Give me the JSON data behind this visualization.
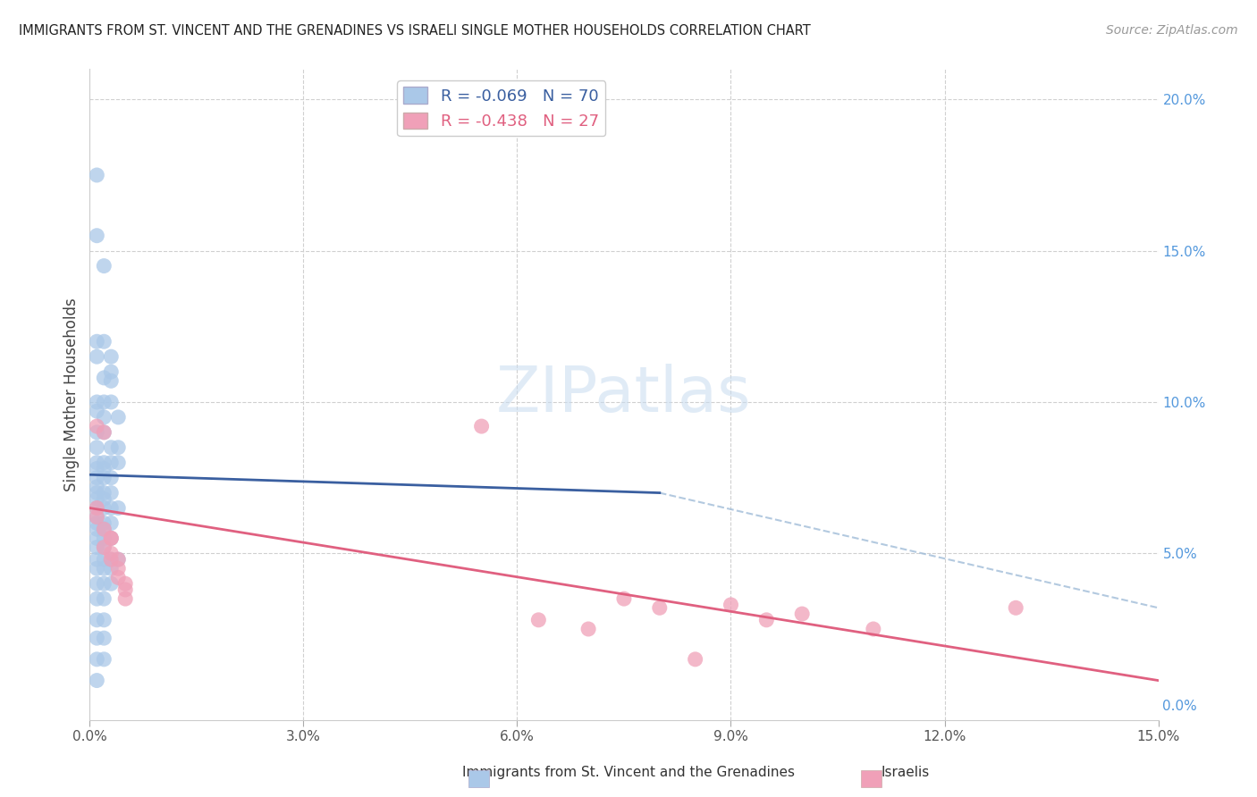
{
  "title": "IMMIGRANTS FROM ST. VINCENT AND THE GRENADINES VS ISRAELI SINGLE MOTHER HOUSEHOLDS CORRELATION CHART",
  "source": "Source: ZipAtlas.com",
  "ylabel": "Single Mother Households",
  "legend_label1": "Immigrants from St. Vincent and the Grenadines",
  "legend_label2": "Israelis",
  "xlim": [
    0.0,
    0.15
  ],
  "ylim": [
    -0.005,
    0.21
  ],
  "xticks": [
    0.0,
    0.03,
    0.06,
    0.09,
    0.12,
    0.15
  ],
  "yticks_right": [
    0.0,
    0.05,
    0.1,
    0.15,
    0.2
  ],
  "blue_color": "#aac8e8",
  "pink_color": "#f0a0b8",
  "blue_line_color": "#3a5fa0",
  "pink_line_color": "#e06080",
  "dashed_line_color": "#a0bcd8",
  "blue_R": -0.069,
  "blue_N": 70,
  "pink_R": -0.438,
  "pink_N": 27,
  "blue_line": [
    0.0,
    0.076,
    0.08,
    0.07
  ],
  "pink_line": [
    0.0,
    0.065,
    0.15,
    0.008
  ],
  "dashed_line": [
    0.08,
    0.07,
    0.15,
    0.032
  ],
  "blue_points": [
    [
      0.001,
      0.175
    ],
    [
      0.001,
      0.155
    ],
    [
      0.002,
      0.145
    ],
    [
      0.001,
      0.12
    ],
    [
      0.002,
      0.12
    ],
    [
      0.001,
      0.115
    ],
    [
      0.003,
      0.115
    ],
    [
      0.003,
      0.11
    ],
    [
      0.002,
      0.108
    ],
    [
      0.003,
      0.107
    ],
    [
      0.001,
      0.1
    ],
    [
      0.002,
      0.1
    ],
    [
      0.003,
      0.1
    ],
    [
      0.001,
      0.097
    ],
    [
      0.002,
      0.095
    ],
    [
      0.004,
      0.095
    ],
    [
      0.001,
      0.09
    ],
    [
      0.002,
      0.09
    ],
    [
      0.001,
      0.085
    ],
    [
      0.003,
      0.085
    ],
    [
      0.004,
      0.085
    ],
    [
      0.001,
      0.08
    ],
    [
      0.002,
      0.08
    ],
    [
      0.003,
      0.08
    ],
    [
      0.004,
      0.08
    ],
    [
      0.001,
      0.078
    ],
    [
      0.002,
      0.078
    ],
    [
      0.001,
      0.075
    ],
    [
      0.002,
      0.075
    ],
    [
      0.003,
      0.075
    ],
    [
      0.001,
      0.072
    ],
    [
      0.001,
      0.07
    ],
    [
      0.002,
      0.07
    ],
    [
      0.003,
      0.07
    ],
    [
      0.001,
      0.068
    ],
    [
      0.002,
      0.068
    ],
    [
      0.001,
      0.065
    ],
    [
      0.002,
      0.065
    ],
    [
      0.003,
      0.065
    ],
    [
      0.004,
      0.065
    ],
    [
      0.001,
      0.062
    ],
    [
      0.001,
      0.06
    ],
    [
      0.002,
      0.06
    ],
    [
      0.003,
      0.06
    ],
    [
      0.001,
      0.058
    ],
    [
      0.002,
      0.058
    ],
    [
      0.001,
      0.055
    ],
    [
      0.002,
      0.055
    ],
    [
      0.003,
      0.055
    ],
    [
      0.001,
      0.052
    ],
    [
      0.002,
      0.052
    ],
    [
      0.001,
      0.048
    ],
    [
      0.002,
      0.048
    ],
    [
      0.003,
      0.048
    ],
    [
      0.004,
      0.048
    ],
    [
      0.001,
      0.045
    ],
    [
      0.002,
      0.045
    ],
    [
      0.003,
      0.045
    ],
    [
      0.001,
      0.04
    ],
    [
      0.002,
      0.04
    ],
    [
      0.003,
      0.04
    ],
    [
      0.001,
      0.035
    ],
    [
      0.002,
      0.035
    ],
    [
      0.001,
      0.028
    ],
    [
      0.002,
      0.028
    ],
    [
      0.001,
      0.022
    ],
    [
      0.002,
      0.022
    ],
    [
      0.001,
      0.015
    ],
    [
      0.002,
      0.015
    ],
    [
      0.001,
      0.008
    ]
  ],
  "pink_points": [
    [
      0.001,
      0.092
    ],
    [
      0.002,
      0.09
    ],
    [
      0.001,
      0.065
    ],
    [
      0.001,
      0.062
    ],
    [
      0.002,
      0.058
    ],
    [
      0.003,
      0.055
    ],
    [
      0.003,
      0.055
    ],
    [
      0.002,
      0.052
    ],
    [
      0.003,
      0.05
    ],
    [
      0.003,
      0.048
    ],
    [
      0.004,
      0.048
    ],
    [
      0.004,
      0.045
    ],
    [
      0.004,
      0.042
    ],
    [
      0.005,
      0.04
    ],
    [
      0.005,
      0.038
    ],
    [
      0.005,
      0.035
    ],
    [
      0.055,
      0.092
    ],
    [
      0.063,
      0.028
    ],
    [
      0.07,
      0.025
    ],
    [
      0.075,
      0.035
    ],
    [
      0.08,
      0.032
    ],
    [
      0.09,
      0.033
    ],
    [
      0.095,
      0.028
    ],
    [
      0.1,
      0.03
    ],
    [
      0.11,
      0.025
    ],
    [
      0.13,
      0.032
    ],
    [
      0.085,
      0.015
    ]
  ]
}
